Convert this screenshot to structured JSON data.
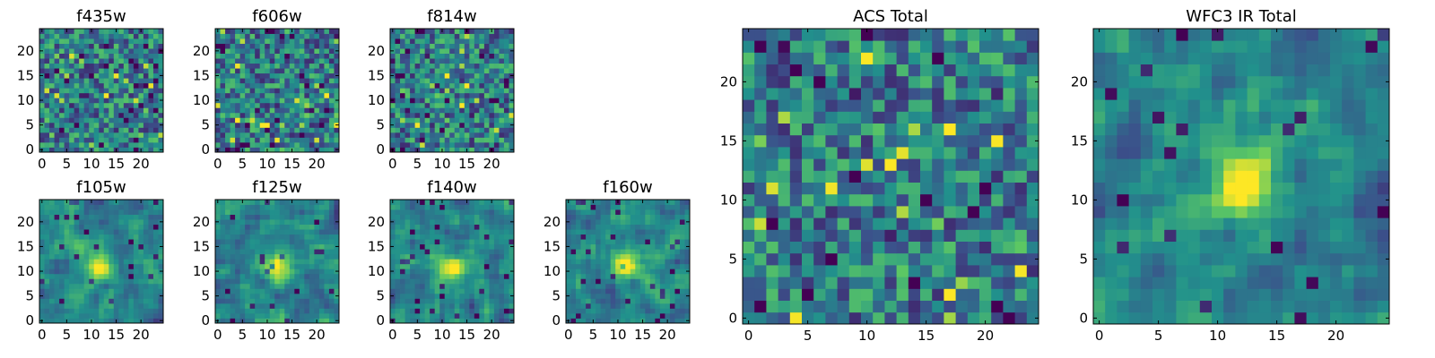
{
  "colormap": {
    "name": "viridis",
    "stops": [
      "#440154",
      "#3b528b",
      "#21918c",
      "#5ec962",
      "#fde725"
    ],
    "display_range": [
      0.22,
      1.0
    ]
  },
  "chart_data": [
    {
      "id": "f435w",
      "type": "heatmap",
      "title": "f435w",
      "grid_size": 25,
      "pattern": "noise",
      "seed": 11,
      "xticks": [
        0,
        5,
        10,
        15,
        20
      ],
      "yticks": [
        0,
        5,
        10,
        15,
        20
      ],
      "xlim": [
        -0.5,
        24.5
      ],
      "ylim": [
        -0.5,
        24.5
      ]
    },
    {
      "id": "f606w",
      "type": "heatmap",
      "title": "f606w",
      "grid_size": 25,
      "pattern": "noise",
      "seed": 23,
      "xticks": [
        0,
        5,
        10,
        15,
        20
      ],
      "yticks": [
        0,
        5,
        10,
        15,
        20
      ],
      "xlim": [
        -0.5,
        24.5
      ],
      "ylim": [
        -0.5,
        24.5
      ]
    },
    {
      "id": "f814w",
      "type": "heatmap",
      "title": "f814w",
      "grid_size": 25,
      "pattern": "noise",
      "seed": 37,
      "xticks": [
        0,
        5,
        10,
        15,
        20
      ],
      "yticks": [
        0,
        5,
        10,
        15,
        20
      ],
      "xlim": [
        -0.5,
        24.5
      ],
      "ylim": [
        -0.5,
        24.5
      ]
    },
    {
      "id": "f105w",
      "type": "heatmap",
      "title": "f105w",
      "grid_size": 25,
      "pattern": "smooth-source",
      "seed": 41,
      "source_center": [
        11.5,
        11.0
      ],
      "source_amplitude": 0.45,
      "xticks": [
        0,
        5,
        10,
        15,
        20
      ],
      "yticks": [
        0,
        5,
        10,
        15,
        20
      ],
      "xlim": [
        -0.5,
        24.5
      ],
      "ylim": [
        -0.5,
        24.5
      ]
    },
    {
      "id": "f125w",
      "type": "heatmap",
      "title": "f125w",
      "grid_size": 25,
      "pattern": "smooth-source",
      "seed": 53,
      "source_center": [
        12.5,
        10.5
      ],
      "source_amplitude": 0.4,
      "xticks": [
        0,
        5,
        10,
        15,
        20
      ],
      "yticks": [
        0,
        5,
        10,
        15,
        20
      ],
      "xlim": [
        -0.5,
        24.5
      ],
      "ylim": [
        -0.5,
        24.5
      ]
    },
    {
      "id": "f140w",
      "type": "heatmap",
      "title": "f140w",
      "grid_size": 25,
      "pattern": "smooth-source",
      "seed": 67,
      "source_center": [
        12.0,
        10.5
      ],
      "source_amplitude": 0.35,
      "xticks": [
        0,
        5,
        10,
        15,
        20
      ],
      "yticks": [
        0,
        5,
        10,
        15,
        20
      ],
      "xlim": [
        -0.5,
        24.5
      ],
      "ylim": [
        -0.5,
        24.5
      ]
    },
    {
      "id": "f160w",
      "type": "heatmap",
      "title": "f160w",
      "grid_size": 25,
      "pattern": "smooth-source",
      "seed": 79,
      "source_center": [
        12.0,
        11.5
      ],
      "source_amplitude": 0.5,
      "xticks": [
        0,
        5,
        10,
        15,
        20
      ],
      "yticks": [
        0,
        5,
        10,
        15,
        20
      ],
      "xlim": [
        -0.5,
        24.5
      ],
      "ylim": [
        -0.5,
        24.5
      ]
    },
    {
      "id": "acs-total",
      "type": "heatmap",
      "title": "ACS Total",
      "grid_size": 25,
      "pattern": "noise",
      "seed": 97,
      "xticks": [
        0,
        5,
        10,
        15,
        20
      ],
      "yticks": [
        0,
        5,
        10,
        15,
        20
      ],
      "xlim": [
        -0.5,
        24.5
      ],
      "ylim": [
        -0.5,
        24.5
      ]
    },
    {
      "id": "wfc3-ir-total",
      "type": "heatmap",
      "title": "WFC3 IR Total",
      "grid_size": 25,
      "pattern": "smooth-source",
      "seed": 113,
      "source_center": [
        12.0,
        11.5
      ],
      "source_amplitude": 0.55,
      "xticks": [
        0,
        5,
        10,
        15,
        20
      ],
      "yticks": [
        0,
        5,
        10,
        15,
        20
      ],
      "xlim": [
        -0.5,
        24.5
      ],
      "ylim": [
        -0.5,
        24.5
      ]
    }
  ]
}
